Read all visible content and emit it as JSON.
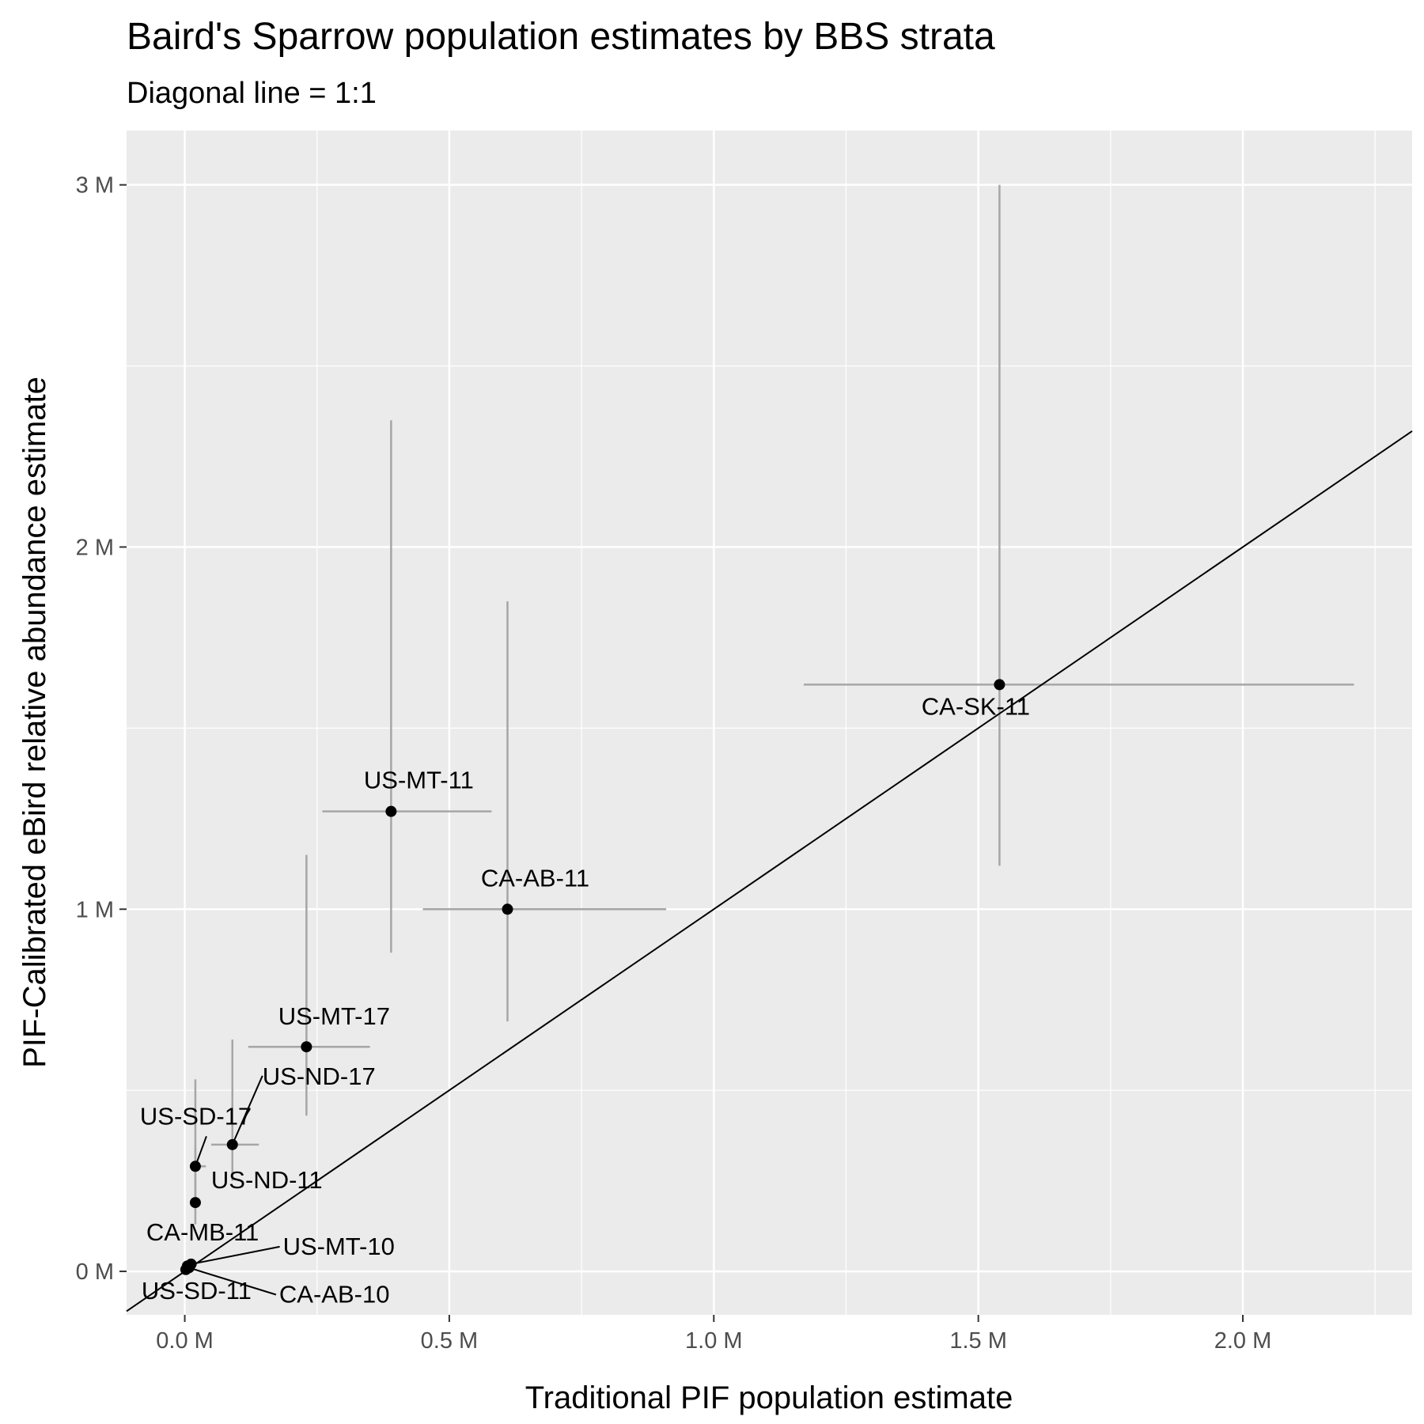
{
  "chart_data": {
    "type": "scatter",
    "title": "Baird's Sparrow population estimates by BBS strata",
    "subtitle": "Diagonal line = 1:1",
    "xlabel": "Traditional PIF population estimate",
    "ylabel": "PIF-Calibrated eBird relative abundance estimate",
    "xlim": [
      -0.11,
      2.32
    ],
    "ylim": [
      -0.12,
      3.15
    ],
    "x_ticks": [
      {
        "value": 0.0,
        "label": "0.0 M"
      },
      {
        "value": 0.5,
        "label": "0.5 M"
      },
      {
        "value": 1.0,
        "label": "1.0 M"
      },
      {
        "value": 1.5,
        "label": "1.5 M"
      },
      {
        "value": 2.0,
        "label": "2.0 M"
      }
    ],
    "y_ticks": [
      {
        "value": 0,
        "label": "0 M"
      },
      {
        "value": 1,
        "label": "1 M"
      },
      {
        "value": 2,
        "label": "2 M"
      },
      {
        "value": 3,
        "label": "3 M"
      }
    ],
    "reference_line": {
      "slope": 1,
      "intercept": 0
    },
    "grid": true,
    "colors": {
      "panel": "#ebebeb",
      "grid": "#ffffff",
      "errorbar": "#a6a6a6",
      "point": "#000000"
    },
    "points": [
      {
        "label": "CA-SK-11",
        "x": 1.54,
        "y": 1.62,
        "x_lo": 1.17,
        "x_hi": 2.21,
        "y_lo": 1.12,
        "y_hi": 3.0
      },
      {
        "label": "US-MT-11",
        "x": 0.39,
        "y": 1.27,
        "x_lo": 0.26,
        "x_hi": 0.58,
        "y_lo": 0.88,
        "y_hi": 2.35
      },
      {
        "label": "CA-AB-11",
        "x": 0.61,
        "y": 1.0,
        "x_lo": 0.45,
        "x_hi": 0.91,
        "y_lo": 0.69,
        "y_hi": 1.85
      },
      {
        "label": "US-MT-17",
        "x": 0.23,
        "y": 0.62,
        "x_lo": 0.12,
        "x_hi": 0.35,
        "y_lo": 0.43,
        "y_hi": 1.15
      },
      {
        "label": "US-ND-17",
        "x": 0.09,
        "y": 0.35,
        "x_lo": 0.05,
        "x_hi": 0.14,
        "y_lo": 0.25,
        "y_hi": 0.64
      },
      {
        "label": "US-SD-17",
        "x": 0.02,
        "y": 0.29,
        "x_lo": 0.01,
        "x_hi": 0.04,
        "y_lo": 0.2,
        "y_hi": 0.53
      },
      {
        "label": "US-ND-11",
        "x": 0.02,
        "y": 0.19,
        "x_lo": 0.01,
        "x_hi": 0.03,
        "y_lo": 0.13,
        "y_hi": 0.34
      },
      {
        "label": "CA-MB-11",
        "x": 0.005,
        "y": 0.015
      },
      {
        "label": "US-MT-10",
        "x": 0.012,
        "y": 0.02
      },
      {
        "label": "US-SD-11",
        "x": 0.002,
        "y": 0.005
      },
      {
        "label": "CA-AB-10",
        "x": 0.008,
        "y": 0.01
      }
    ]
  }
}
